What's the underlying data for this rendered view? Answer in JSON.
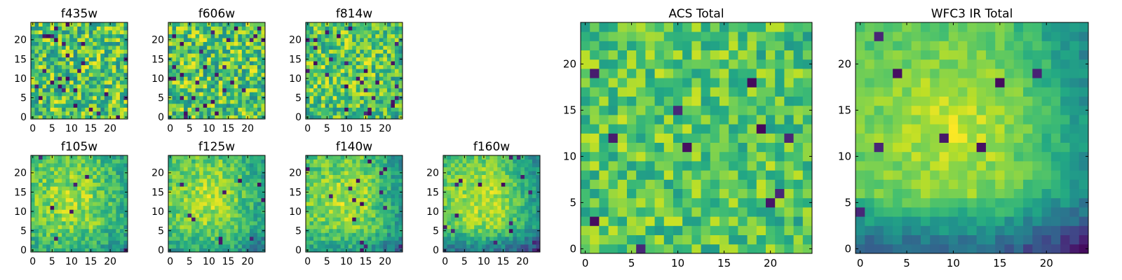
{
  "chart_data": [
    {
      "type": "heatmap",
      "title": "f435w",
      "xticks": [
        0,
        5,
        10,
        15,
        20
      ],
      "yticks": [
        0,
        5,
        10,
        15,
        20
      ],
      "xlim": [
        -0.5,
        24.5
      ],
      "ylim": [
        -0.5,
        24.5
      ],
      "colormap": "viridis",
      "grid_size": 25,
      "center_brightness": 0.0,
      "edge_falloff": 0.0,
      "bottom_dark": 0.0,
      "noise": 1.0,
      "dark_fraction": 0.035,
      "seed": 11
    },
    {
      "type": "heatmap",
      "title": "f606w",
      "xticks": [
        0,
        5,
        10,
        15,
        20
      ],
      "yticks": [
        0,
        5,
        10,
        15,
        20
      ],
      "xlim": [
        -0.5,
        24.5
      ],
      "ylim": [
        -0.5,
        24.5
      ],
      "colormap": "viridis",
      "grid_size": 25,
      "center_brightness": 0.0,
      "edge_falloff": 0.0,
      "bottom_dark": 0.0,
      "noise": 1.0,
      "dark_fraction": 0.04,
      "seed": 23
    },
    {
      "type": "heatmap",
      "title": "f814w",
      "xticks": [
        0,
        5,
        10,
        15,
        20
      ],
      "yticks": [
        0,
        5,
        10,
        15,
        20
      ],
      "xlim": [
        -0.5,
        24.5
      ],
      "ylim": [
        -0.5,
        24.5
      ],
      "colormap": "viridis",
      "grid_size": 25,
      "center_brightness": 0.15,
      "edge_falloff": 0.05,
      "bottom_dark": 0.05,
      "noise": 0.9,
      "dark_fraction": 0.03,
      "seed": 37
    },
    {
      "type": "heatmap",
      "title": "f105w",
      "xticks": [
        0,
        5,
        10,
        15,
        20
      ],
      "yticks": [
        0,
        5,
        10,
        15,
        20
      ],
      "xlim": [
        -0.5,
        24.5
      ],
      "ylim": [
        -0.5,
        24.5
      ],
      "colormap": "viridis",
      "grid_size": 25,
      "center_brightness": 0.45,
      "edge_falloff": 0.25,
      "bottom_dark": 0.15,
      "noise": 0.55,
      "dark_fraction": 0.01,
      "seed": 41
    },
    {
      "type": "heatmap",
      "title": "f125w",
      "xticks": [
        0,
        5,
        10,
        15,
        20
      ],
      "yticks": [
        0,
        5,
        10,
        15,
        20
      ],
      "xlim": [
        -0.5,
        24.5
      ],
      "ylim": [
        -0.5,
        24.5
      ],
      "colormap": "viridis",
      "grid_size": 25,
      "center_brightness": 0.5,
      "edge_falloff": 0.3,
      "bottom_dark": 0.25,
      "noise": 0.5,
      "dark_fraction": 0.015,
      "seed": 53
    },
    {
      "type": "heatmap",
      "title": "f140w",
      "xticks": [
        0,
        5,
        10,
        15,
        20
      ],
      "yticks": [
        0,
        5,
        10,
        15,
        20
      ],
      "xlim": [
        -0.5,
        24.5
      ],
      "ylim": [
        -0.5,
        24.5
      ],
      "colormap": "viridis",
      "grid_size": 25,
      "center_brightness": 0.5,
      "edge_falloff": 0.35,
      "bottom_dark": 0.3,
      "noise": 0.5,
      "dark_fraction": 0.02,
      "seed": 67
    },
    {
      "type": "heatmap",
      "title": "f160w",
      "xticks": [
        0,
        5,
        10,
        15,
        20
      ],
      "yticks": [
        0,
        5,
        10,
        15,
        20
      ],
      "xlim": [
        -0.5,
        24.5
      ],
      "ylim": [
        -0.5,
        24.5
      ],
      "colormap": "viridis",
      "grid_size": 25,
      "center_brightness": 0.55,
      "edge_falloff": 0.4,
      "bottom_dark": 0.6,
      "noise": 0.45,
      "dark_fraction": 0.02,
      "seed": 79
    },
    {
      "type": "heatmap",
      "title": "ACS Total",
      "xticks": [
        0,
        5,
        10,
        15,
        20
      ],
      "yticks": [
        0,
        5,
        10,
        15,
        20
      ],
      "xlim": [
        -0.5,
        24.5
      ],
      "ylim": [
        -0.5,
        24.5
      ],
      "colormap": "viridis",
      "grid_size": 25,
      "center_brightness": 0.1,
      "edge_falloff": 0.0,
      "bottom_dark": 0.0,
      "noise": 0.7,
      "dark_fraction": 0.022,
      "seed": 97
    },
    {
      "type": "heatmap",
      "title": "WFC3 IR Total",
      "xticks": [
        0,
        5,
        10,
        15,
        20
      ],
      "yticks": [
        0,
        5,
        10,
        15,
        20
      ],
      "xlim": [
        -0.5,
        24.5
      ],
      "ylim": [
        -0.5,
        24.5
      ],
      "colormap": "viridis",
      "grid_size": 25,
      "center_brightness": 0.6,
      "edge_falloff": 0.4,
      "bottom_dark": 0.75,
      "noise": 0.3,
      "dark_fraction": 0.012,
      "seed": 113
    }
  ]
}
